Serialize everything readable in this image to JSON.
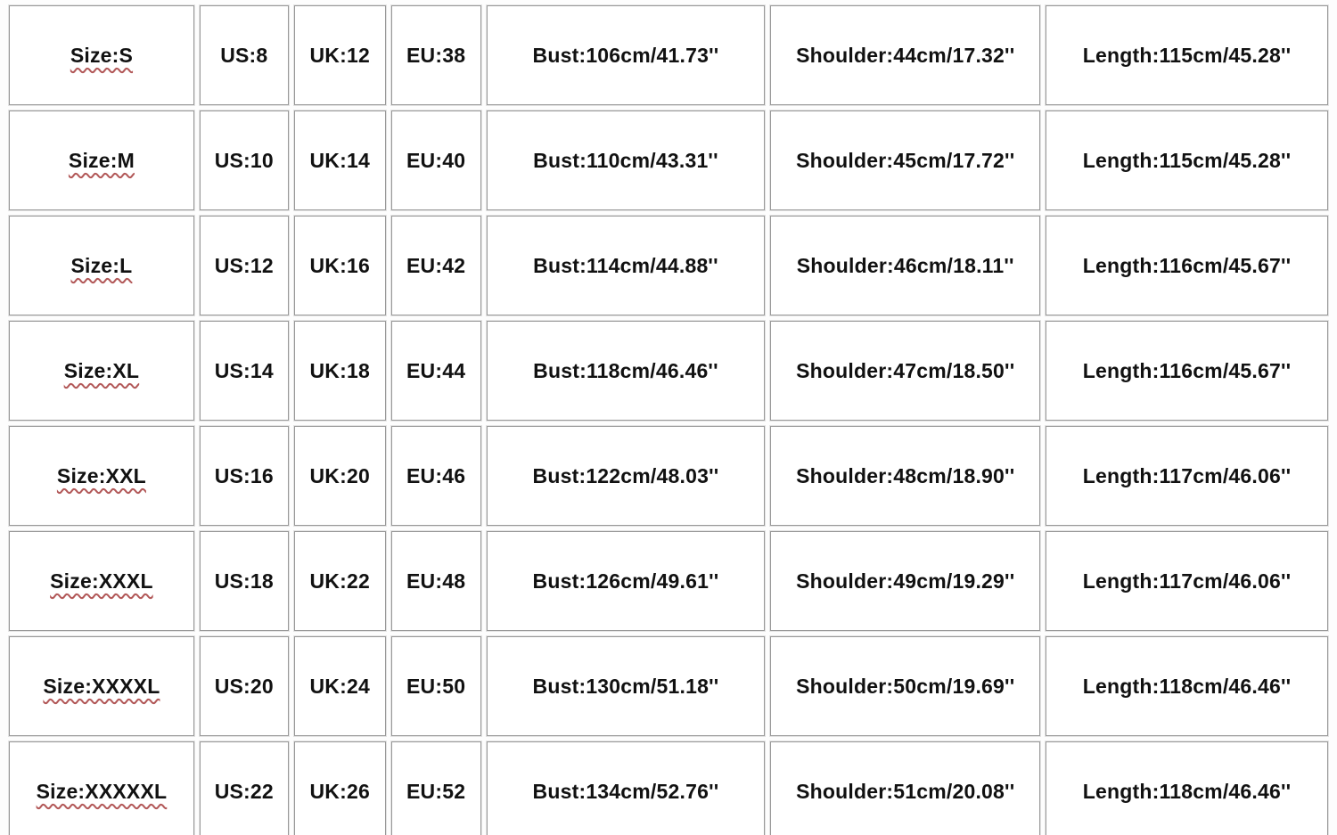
{
  "chart_data": {
    "type": "table",
    "title": "Garment size chart",
    "columns": [
      "Size",
      "US",
      "UK",
      "EU",
      "Bust",
      "Shoulder",
      "Length"
    ],
    "rows": [
      [
        "Size:S",
        "US:8",
        "UK:12",
        "EU:38",
        "Bust:106cm/41.73''",
        "Shoulder:44cm/17.32''",
        "Length:115cm/45.28''"
      ],
      [
        "Size:M",
        "US:10",
        "UK:14",
        "EU:40",
        "Bust:110cm/43.31''",
        "Shoulder:45cm/17.72''",
        "Length:115cm/45.28''"
      ],
      [
        "Size:L",
        "US:12",
        "UK:16",
        "EU:42",
        "Bust:114cm/44.88''",
        "Shoulder:46cm/18.11''",
        "Length:116cm/45.67''"
      ],
      [
        "Size:XL",
        "US:14",
        "UK:18",
        "EU:44",
        "Bust:118cm/46.46''",
        "Shoulder:47cm/18.50''",
        "Length:116cm/45.67''"
      ],
      [
        "Size:XXL",
        "US:16",
        "UK:20",
        "EU:46",
        "Bust:122cm/48.03''",
        "Shoulder:48cm/18.90''",
        "Length:117cm/46.06''"
      ],
      [
        "Size:XXXL",
        "US:18",
        "UK:22",
        "EU:48",
        "Bust:126cm/49.61''",
        "Shoulder:49cm/19.29''",
        "Length:117cm/46.06''"
      ],
      [
        "Size:XXXXL",
        "US:20",
        "UK:24",
        "EU:50",
        "Bust:130cm/51.18''",
        "Shoulder:50cm/19.69''",
        "Length:118cm/46.46''"
      ],
      [
        "Size:XXXXXL",
        "US:22",
        "UK:26",
        "EU:52",
        "Bust:134cm/52.76''",
        "Shoulder:51cm/20.08''",
        "Length:118cm/46.46''"
      ]
    ]
  },
  "colors": {
    "cell_border": "#999999",
    "cell_border_halo": "#e3e3e3",
    "text": "#111111",
    "spellcheck_squiggle": "#b25858",
    "background": "#ffffff"
  }
}
